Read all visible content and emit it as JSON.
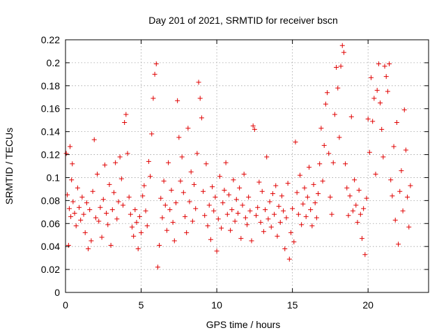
{
  "chart_data": {
    "type": "scatter",
    "title": "Day 201 of 2021, SRMTID for receiver bscn",
    "xlabel": "GPS time / hours",
    "ylabel": "SRMTID / TECUs",
    "xlim": [
      0,
      24
    ],
    "ylim": [
      0,
      0.22
    ],
    "x_ticks": [
      0,
      5,
      10,
      15,
      20
    ],
    "x_tick_labels": [
      "0",
      "5",
      "10",
      "15",
      "20"
    ],
    "y_ticks": [
      0,
      0.02,
      0.04,
      0.06,
      0.08,
      0.1,
      0.12,
      0.14,
      0.16,
      0.18,
      0.2,
      0.22
    ],
    "y_tick_labels": [
      "0",
      "0.02",
      "0.04",
      "0.06",
      "0.08",
      "0.1",
      "0.12",
      "0.14",
      "0.16",
      "0.18",
      "0.2",
      "0.22"
    ],
    "grid": true,
    "marker": "+",
    "marker_color": "#e00000",
    "series": [
      {
        "name": "SRMTID",
        "points": [
          [
            0.05,
            0.121
          ],
          [
            0.12,
            0.085
          ],
          [
            0.2,
            0.041
          ],
          [
            0.25,
            0.073
          ],
          [
            0.3,
            0.127
          ],
          [
            0.35,
            0.066
          ],
          [
            0.4,
            0.098
          ],
          [
            0.45,
            0.112
          ],
          [
            0.5,
            0.079
          ],
          [
            0.6,
            0.069
          ],
          [
            0.7,
            0.058
          ],
          [
            0.8,
            0.091
          ],
          [
            0.9,
            0.074
          ],
          [
            1.0,
            0.063
          ],
          [
            1.1,
            0.083
          ],
          [
            1.2,
            0.068
          ],
          [
            1.3,
            0.052
          ],
          [
            1.4,
            0.078
          ],
          [
            1.5,
            0.038
          ],
          [
            1.6,
            0.072
          ],
          [
            1.7,
            0.045
          ],
          [
            1.8,
            0.088
          ],
          [
            1.9,
            0.133
          ],
          [
            2.0,
            0.065
          ],
          [
            2.1,
            0.103
          ],
          [
            2.2,
            0.062
          ],
          [
            2.3,
            0.074
          ],
          [
            2.4,
            0.048
          ],
          [
            2.5,
            0.081
          ],
          [
            2.6,
            0.111
          ],
          [
            2.7,
            0.069
          ],
          [
            2.8,
            0.059
          ],
          [
            2.9,
            0.094
          ],
          [
            3.0,
            0.041
          ],
          [
            3.1,
            0.072
          ],
          [
            3.2,
            0.087
          ],
          [
            3.3,
            0.113
          ],
          [
            3.4,
            0.064
          ],
          [
            3.5,
            0.079
          ],
          [
            3.6,
            0.118
          ],
          [
            3.7,
            0.099
          ],
          [
            3.8,
            0.076
          ],
          [
            3.9,
            0.148
          ],
          [
            4.0,
            0.155
          ],
          [
            4.1,
            0.121
          ],
          [
            4.2,
            0.083
          ],
          [
            4.3,
            0.068
          ],
          [
            4.4,
            0.057
          ],
          [
            4.5,
            0.049
          ],
          [
            4.6,
            0.072
          ],
          [
            4.7,
            0.061
          ],
          [
            4.8,
            0.038
          ],
          [
            4.9,
            0.066
          ],
          [
            5.0,
            0.052
          ],
          [
            5.1,
            0.084
          ],
          [
            5.2,
            0.093
          ],
          [
            5.3,
            0.071
          ],
          [
            5.4,
            0.058
          ],
          [
            5.5,
            0.114
          ],
          [
            5.6,
            0.101
          ],
          [
            5.7,
            0.138
          ],
          [
            5.8,
            0.169
          ],
          [
            5.9,
            0.19
          ],
          [
            6.0,
            0.199
          ],
          [
            6.1,
            0.022
          ],
          [
            6.2,
            0.041
          ],
          [
            6.3,
            0.082
          ],
          [
            6.4,
            0.065
          ],
          [
            6.5,
            0.097
          ],
          [
            6.6,
            0.076
          ],
          [
            6.7,
            0.054
          ],
          [
            6.8,
            0.113
          ],
          [
            6.9,
            0.072
          ],
          [
            7.0,
            0.089
          ],
          [
            7.1,
            0.061
          ],
          [
            7.2,
            0.045
          ],
          [
            7.3,
            0.078
          ],
          [
            7.4,
            0.167
          ],
          [
            7.5,
            0.135
          ],
          [
            7.6,
            0.097
          ],
          [
            7.7,
            0.118
          ],
          [
            7.8,
            0.087
          ],
          [
            7.9,
            0.066
          ],
          [
            8.0,
            0.052
          ],
          [
            8.1,
            0.143
          ],
          [
            8.2,
            0.079
          ],
          [
            8.3,
            0.105
          ],
          [
            8.4,
            0.062
          ],
          [
            8.5,
            0.094
          ],
          [
            8.6,
            0.073
          ],
          [
            8.7,
            0.121
          ],
          [
            8.8,
            0.183
          ],
          [
            8.9,
            0.169
          ],
          [
            9.0,
            0.152
          ],
          [
            9.1,
            0.088
          ],
          [
            9.2,
            0.067
          ],
          [
            9.3,
            0.112
          ],
          [
            9.4,
            0.058
          ],
          [
            9.5,
            0.076
          ],
          [
            9.6,
            0.046
          ],
          [
            9.7,
            0.092
          ],
          [
            9.8,
            0.071
          ],
          [
            9.9,
            0.083
          ],
          [
            10.0,
            0.036
          ],
          [
            10.1,
            0.064
          ],
          [
            10.2,
            0.101
          ],
          [
            10.3,
            0.056
          ],
          [
            10.4,
            0.078
          ],
          [
            10.5,
            0.089
          ],
          [
            10.6,
            0.113
          ],
          [
            10.7,
            0.068
          ],
          [
            10.8,
            0.085
          ],
          [
            10.9,
            0.054
          ],
          [
            11.0,
            0.072
          ],
          [
            11.1,
            0.098
          ],
          [
            11.2,
            0.062
          ],
          [
            11.3,
            0.081
          ],
          [
            11.4,
            0.069
          ],
          [
            11.5,
            0.091
          ],
          [
            11.6,
            0.047
          ],
          [
            11.7,
            0.076
          ],
          [
            11.8,
            0.103
          ],
          [
            11.9,
            0.065
          ],
          [
            12.0,
            0.059
          ],
          [
            12.1,
            0.083
          ],
          [
            12.2,
            0.071
          ],
          [
            12.3,
            0.045
          ],
          [
            12.4,
            0.145
          ],
          [
            12.5,
            0.142
          ],
          [
            12.6,
            0.067
          ],
          [
            12.7,
            0.074
          ],
          [
            12.8,
            0.096
          ],
          [
            12.9,
            0.061
          ],
          [
            13.0,
            0.088
          ],
          [
            13.1,
            0.053
          ],
          [
            13.2,
            0.072
          ],
          [
            13.3,
            0.118
          ],
          [
            13.4,
            0.064
          ],
          [
            13.5,
            0.079
          ],
          [
            13.6,
            0.057
          ],
          [
            13.7,
            0.086
          ],
          [
            13.8,
            0.068
          ],
          [
            13.9,
            0.093
          ],
          [
            14.0,
            0.049
          ],
          [
            14.1,
            0.075
          ],
          [
            14.2,
            0.061
          ],
          [
            14.3,
            0.084
          ],
          [
            14.4,
            0.071
          ],
          [
            14.5,
            0.038
          ],
          [
            14.6,
            0.065
          ],
          [
            14.7,
            0.095
          ],
          [
            14.8,
            0.029
          ],
          [
            14.9,
            0.052
          ],
          [
            15.0,
            0.073
          ],
          [
            15.1,
            0.044
          ],
          [
            15.2,
            0.131
          ],
          [
            15.3,
            0.087
          ],
          [
            15.4,
            0.068
          ],
          [
            15.5,
            0.102
          ],
          [
            15.6,
            0.059
          ],
          [
            15.7,
            0.077
          ],
          [
            15.8,
            0.091
          ],
          [
            15.9,
            0.066
          ],
          [
            16.0,
            0.083
          ],
          [
            16.1,
            0.109
          ],
          [
            16.2,
            0.072
          ],
          [
            16.3,
            0.058
          ],
          [
            16.4,
            0.094
          ],
          [
            16.5,
            0.078
          ],
          [
            16.6,
            0.065
          ],
          [
            16.7,
            0.086
          ],
          [
            16.8,
            0.112
          ],
          [
            16.9,
            0.143
          ],
          [
            17.0,
            0.097
          ],
          [
            17.1,
            0.128
          ],
          [
            17.2,
            0.164
          ],
          [
            17.3,
            0.174
          ],
          [
            17.4,
            0.121
          ],
          [
            17.5,
            0.083
          ],
          [
            17.6,
            0.068
          ],
          [
            17.7,
            0.113
          ],
          [
            17.8,
            0.155
          ],
          [
            17.9,
            0.196
          ],
          [
            18.0,
            0.178
          ],
          [
            18.1,
            0.135
          ],
          [
            18.2,
            0.197
          ],
          [
            18.3,
            0.215
          ],
          [
            18.4,
            0.209
          ],
          [
            18.5,
            0.112
          ],
          [
            18.6,
            0.091
          ],
          [
            18.7,
            0.067
          ],
          [
            18.8,
            0.084
          ],
          [
            18.9,
            0.153
          ],
          [
            19.0,
            0.071
          ],
          [
            19.1,
            0.098
          ],
          [
            19.2,
            0.076
          ],
          [
            19.3,
            0.061
          ],
          [
            19.4,
            0.089
          ],
          [
            19.5,
            0.068
          ],
          [
            19.6,
            0.047
          ],
          [
            19.7,
            0.073
          ],
          [
            19.8,
            0.033
          ],
          [
            19.9,
            0.082
          ],
          [
            20.0,
            0.151
          ],
          [
            20.1,
            0.122
          ],
          [
            20.2,
            0.187
          ],
          [
            20.3,
            0.149
          ],
          [
            20.4,
            0.169
          ],
          [
            20.5,
            0.103
          ],
          [
            20.6,
            0.176
          ],
          [
            20.7,
            0.199
          ],
          [
            20.8,
            0.165
          ],
          [
            20.9,
            0.142
          ],
          [
            21.0,
            0.118
          ],
          [
            21.1,
            0.197
          ],
          [
            21.2,
            0.188
          ],
          [
            21.3,
            0.175
          ],
          [
            21.4,
            0.199
          ],
          [
            21.5,
            0.098
          ],
          [
            21.6,
            0.084
          ],
          [
            21.7,
            0.127
          ],
          [
            21.8,
            0.063
          ],
          [
            21.9,
            0.148
          ],
          [
            22.0,
            0.042
          ],
          [
            22.1,
            0.088
          ],
          [
            22.2,
            0.106
          ],
          [
            22.3,
            0.071
          ],
          [
            22.4,
            0.159
          ],
          [
            22.5,
            0.124
          ],
          [
            22.6,
            0.083
          ],
          [
            22.7,
            0.057
          ],
          [
            22.8,
            0.093
          ]
        ]
      }
    ]
  }
}
